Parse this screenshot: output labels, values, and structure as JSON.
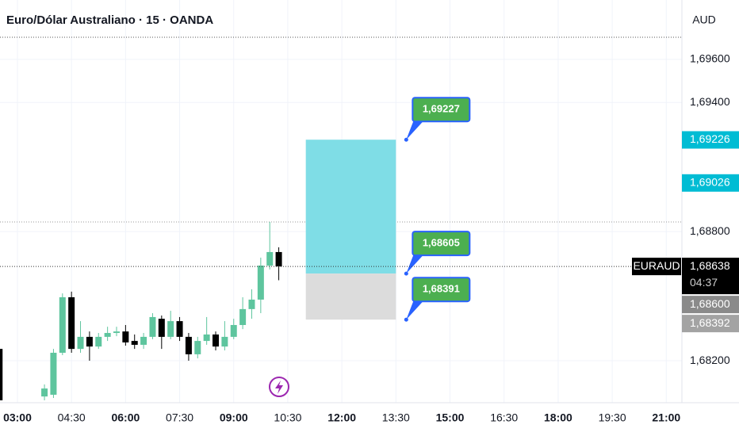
{
  "chart_data": {
    "type": "candlestick",
    "title": "Euro/Dólar Australiano · 15 · OANDA",
    "currency": "AUD",
    "up_color": "#5ec59e",
    "down_color": "#000000",
    "grid": true,
    "xlim": [
      "02:31",
      "21:26"
    ],
    "xticks": [
      "03:00",
      "04:30",
      "06:00",
      "07:30",
      "09:00",
      "10:30",
      "12:00",
      "13:30",
      "15:00",
      "16:30",
      "18:00",
      "19:30",
      "21:00"
    ],
    "ylim": [
      1.68005,
      1.69876
    ],
    "yticks": [
      {
        "value": 1.682,
        "label": "1,68200"
      },
      {
        "value": 1.688,
        "label": "1,68800"
      },
      {
        "value": 1.694,
        "label": "1,69400"
      },
      {
        "value": 1.696,
        "label": "1,69600"
      }
    ],
    "x": [
      "02:30",
      "03:45",
      "04:00",
      "04:15",
      "04:30",
      "04:45",
      "05:00",
      "05:15",
      "05:30",
      "05:45",
      "06:00",
      "06:15",
      "06:30",
      "06:45",
      "07:00",
      "07:15",
      "07:30",
      "07:45",
      "08:00",
      "08:15",
      "08:30",
      "08:45",
      "09:00",
      "09:15",
      "09:30",
      "09:45",
      "10:00",
      "10:15"
    ],
    "open": [
      1.68255,
      1.68034,
      1.68042,
      1.68237,
      1.68495,
      1.68255,
      1.68311,
      1.68266,
      1.68311,
      1.68329,
      1.68336,
      1.68292,
      1.68274,
      1.68311,
      1.68395,
      1.68311,
      1.68384,
      1.68311,
      1.6823,
      1.68292,
      1.68322,
      1.68266,
      1.68311,
      1.68366,
      1.6844,
      1.68484,
      1.68642,
      1.68705
    ],
    "high": [
      1.68262,
      1.6809,
      1.68255,
      1.68513,
      1.68521,
      1.68384,
      1.68336,
      1.68329,
      1.68358,
      1.68358,
      1.68366,
      1.68322,
      1.68329,
      1.68421,
      1.6841,
      1.68432,
      1.68403,
      1.68329,
      1.68311,
      1.68403,
      1.68336,
      1.68384,
      1.68395,
      1.68495,
      1.68532,
      1.68679,
      1.68845,
      1.68727
    ],
    "low": [
      1.68005,
      1.68016,
      1.68027,
      1.68226,
      1.68237,
      1.68237,
      1.682,
      1.68255,
      1.68292,
      1.68314,
      1.6827,
      1.68255,
      1.68255,
      1.683,
      1.68255,
      1.683,
      1.68292,
      1.682,
      1.68211,
      1.68274,
      1.68248,
      1.68248,
      1.683,
      1.68347,
      1.68395,
      1.68421,
      1.68624,
      1.68574
    ],
    "close": [
      1.68016,
      1.68071,
      1.68237,
      1.68495,
      1.68255,
      1.68311,
      1.68266,
      1.68311,
      1.68329,
      1.68336,
      1.68285,
      1.68274,
      1.68311,
      1.68403,
      1.68311,
      1.68384,
      1.68311,
      1.6823,
      1.68292,
      1.68322,
      1.68266,
      1.68311,
      1.68366,
      1.6844,
      1.68484,
      1.68642,
      1.68705,
      1.68638
    ],
    "position_tool": {
      "start": "11:00",
      "end": "13:30",
      "target": {
        "value": 1.69227,
        "label": "1,69227"
      },
      "entry": {
        "value": 1.68605,
        "label": "1,68605"
      },
      "stop": {
        "value": 1.68391,
        "label": "1,68391"
      },
      "profit_color": "#7fdde6",
      "loss_color": "#dcdcdc"
    },
    "price_labels": [
      {
        "value": 1.69226,
        "label": "1,69226",
        "color": "#00bcd4"
      },
      {
        "value": 1.69026,
        "label": "1,69026",
        "color": "#00bcd4"
      },
      {
        "value": 1.68638,
        "label": "1,68638",
        "name": "EURAUD",
        "countdown": "04:37",
        "color": "#000000"
      },
      {
        "value": 1.686,
        "label": "1,68600",
        "color": "#8a8a8a"
      },
      {
        "value": 1.68392,
        "label": "1,68392",
        "color": "#a3a3a3"
      }
    ]
  }
}
